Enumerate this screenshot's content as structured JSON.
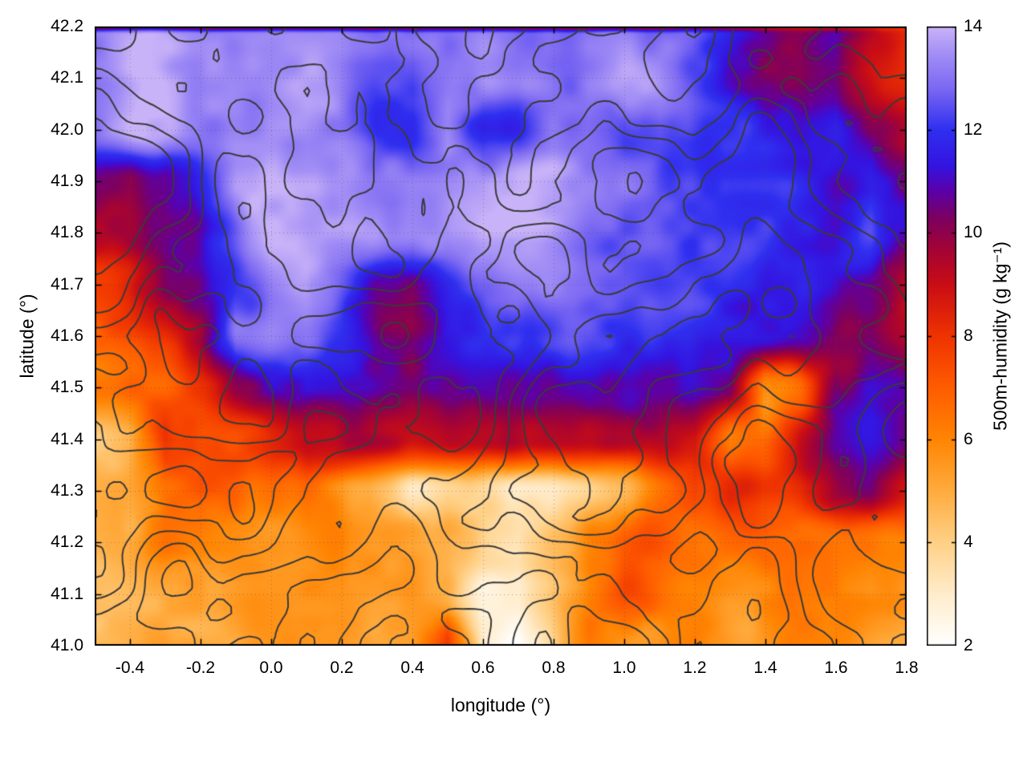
{
  "figure": {
    "background": "#ffffff"
  },
  "chart_data": {
    "type": "heatmap",
    "title": "",
    "xlabel": "longitude (°)",
    "ylabel": "latitude (°)",
    "colorbar_label": "500m-humidity (g kg⁻¹)",
    "xlim": [
      -0.5,
      1.8
    ],
    "ylim": [
      41.0,
      42.2
    ],
    "clim": [
      2,
      14
    ],
    "xticks": [
      -0.4,
      -0.2,
      0.0,
      0.2,
      0.4,
      0.6,
      0.8,
      1.0,
      1.2,
      1.4,
      1.6,
      1.8
    ],
    "xtick_labels": [
      "-0.4",
      "-0.2",
      "0.0",
      "0.2",
      "0.4",
      "0.6",
      "0.8",
      "1.0",
      "1.2",
      "1.4",
      "1.6",
      "1.8"
    ],
    "yticks": [
      41.0,
      41.1,
      41.2,
      41.3,
      41.4,
      41.5,
      41.6,
      41.7,
      41.8,
      41.9,
      42.0,
      42.1,
      42.2
    ],
    "ytick_labels": [
      "41.0",
      "41.1",
      "41.2",
      "41.3",
      "41.4",
      "41.5",
      "41.6",
      "41.7",
      "41.8",
      "41.9",
      "42.0",
      "42.1",
      "42.2"
    ],
    "ctick_values": [
      2,
      4,
      6,
      8,
      10,
      12,
      14
    ],
    "ctick_labels": [
      "2",
      "4",
      "6",
      "8",
      "10",
      "12",
      "14"
    ],
    "grid_lines": true,
    "grid_line_color": "rgba(70,70,70,0.45)",
    "contours": {
      "color": "#3a3a3a",
      "linewidth": 2,
      "count": 7
    },
    "colormap": [
      {
        "v": 2.0,
        "c": "#ffffff"
      },
      {
        "v": 3.0,
        "c": "#ffeccb"
      },
      {
        "v": 4.0,
        "c": "#ffd086"
      },
      {
        "v": 5.0,
        "c": "#ffab3e"
      },
      {
        "v": 6.0,
        "c": "#ff8503"
      },
      {
        "v": 7.0,
        "c": "#ff5c00"
      },
      {
        "v": 8.0,
        "c": "#ef3300"
      },
      {
        "v": 9.0,
        "c": "#c90d15"
      },
      {
        "v": 9.7,
        "c": "#a30336"
      },
      {
        "v": 10.3,
        "c": "#7c0061"
      },
      {
        "v": 10.8,
        "c": "#5c00a8"
      },
      {
        "v": 11.3,
        "c": "#3414e0"
      },
      {
        "v": 12.0,
        "c": "#2f2ff0"
      },
      {
        "v": 12.8,
        "c": "#7b68f2"
      },
      {
        "v": 13.5,
        "c": "#a490f5"
      },
      {
        "v": 14.0,
        "c": "#c9b3f8"
      }
    ],
    "top_edge_band": {
      "lat_min": 42.184,
      "value": 8
    },
    "humidity_grid": {
      "lon_start": -0.5,
      "lon_step": 0.1,
      "cols": 24,
      "lat_start": 42.2,
      "lat_step": -0.1,
      "rows": 13,
      "values": [
        [
          13.5,
          13.5,
          13.5,
          13.5,
          13.5,
          13.5,
          13.5,
          13.5,
          13,
          13,
          13,
          13.5,
          13,
          13,
          13.5,
          13.5,
          13,
          12.5,
          11.5,
          10.5,
          10,
          11,
          9.5,
          8.5
        ],
        [
          13.5,
          13.5,
          13.5,
          13.5,
          13.5,
          13.5,
          13.5,
          13.5,
          13,
          12.5,
          13,
          13.5,
          13,
          13,
          13.5,
          13.5,
          13,
          12,
          11,
          10,
          9.5,
          10.5,
          9,
          8
        ],
        [
          13.5,
          13.5,
          13.5,
          13.5,
          13.5,
          13.5,
          13.5,
          13,
          11.5,
          11.5,
          13,
          11.5,
          11.5,
          13,
          13,
          12.5,
          13,
          12.5,
          12,
          11.5,
          11,
          11.5,
          10,
          9
        ],
        [
          11,
          10,
          10.5,
          12.5,
          13.5,
          13.5,
          13.5,
          13.5,
          13,
          13,
          13,
          13,
          13.5,
          13.5,
          13,
          13,
          12.5,
          12.5,
          12,
          12,
          11.5,
          11,
          11.5,
          10
        ],
        [
          9.5,
          9.5,
          10,
          11,
          12.5,
          13.5,
          13.5,
          13.5,
          13.5,
          13,
          13,
          13.5,
          13.5,
          13.5,
          13,
          12.5,
          12.5,
          12,
          12,
          12,
          11.5,
          11,
          12,
          11
        ],
        [
          7.5,
          8,
          10,
          10.5,
          12,
          13,
          13.5,
          12.5,
          11,
          10.5,
          12,
          13,
          13.5,
          13.5,
          13,
          12.5,
          12,
          12,
          12,
          11.5,
          11.5,
          11,
          10.5,
          9.5
        ],
        [
          7,
          7.5,
          8,
          9.5,
          13,
          13.5,
          13,
          12,
          10.5,
          10.5,
          11.5,
          12,
          12.5,
          12.5,
          12.5,
          12,
          12,
          11.5,
          11.5,
          11.5,
          11,
          10.5,
          10.5,
          9
        ],
        [
          6.5,
          7,
          7,
          8,
          10,
          11,
          11.5,
          11,
          10.5,
          10.5,
          11,
          11,
          11,
          11,
          11,
          11,
          11,
          11,
          10.5,
          5.5,
          7,
          10.5,
          11,
          10.5
        ],
        [
          4,
          4.5,
          8,
          7,
          7.5,
          8.5,
          9.5,
          9.5,
          9.5,
          9.5,
          9.5,
          9.5,
          9.5,
          9.5,
          9.5,
          9.5,
          9.5,
          9,
          6,
          6.5,
          9,
          10.5,
          11,
          10.5
        ],
        [
          4.5,
          5,
          6.5,
          7,
          6.5,
          6,
          6.5,
          5.5,
          4.5,
          3.5,
          4,
          3.5,
          3,
          3,
          3.5,
          5,
          6.5,
          7.5,
          8,
          7.5,
          8,
          9.5,
          10,
          9
        ],
        [
          4.5,
          5,
          6.5,
          6.5,
          6,
          5.5,
          5.5,
          6,
          5.5,
          5,
          4.5,
          3.5,
          3,
          4,
          5.5,
          6.5,
          7,
          7,
          6.5,
          7,
          7,
          6.5,
          6.5,
          6.5
        ],
        [
          4,
          4.5,
          5,
          5.5,
          5.5,
          5.5,
          6,
          6,
          5.5,
          5,
          4.5,
          2.5,
          2.5,
          4.5,
          6.5,
          7,
          6.5,
          6.5,
          6,
          6,
          6,
          6,
          5.5,
          5.5
        ],
        [
          4.5,
          5,
          5.5,
          5,
          5,
          5.5,
          5.5,
          5.5,
          5,
          5.5,
          8,
          3,
          2.5,
          4,
          6,
          6,
          5.5,
          6,
          5.5,
          5.5,
          5.5,
          5.5,
          5,
          5
        ]
      ]
    }
  }
}
